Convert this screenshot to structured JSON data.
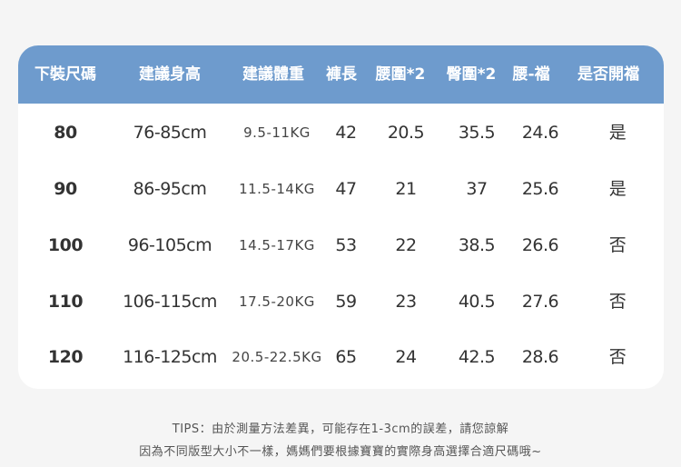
{
  "table": {
    "header_color": "#6e9bcd",
    "headers": [
      "下裝尺碼",
      "建議身高",
      "建議體重",
      "褲長",
      "腰圍*2",
      "臀圍*2",
      "腰-襠",
      "是否開襠"
    ],
    "rows": [
      [
        "80",
        "76-85cm",
        "9.5-11KG",
        "42",
        "20.5",
        "35.5",
        "24.6",
        "是"
      ],
      [
        "90",
        "86-95cm",
        "11.5-14KG",
        "47",
        "21",
        "37",
        "25.6",
        "是"
      ],
      [
        "100",
        "96-105cm",
        "14.5-17KG",
        "53",
        "22",
        "38.5",
        "26.6",
        "否"
      ],
      [
        "110",
        "106-115cm",
        "17.5-20KG",
        "59",
        "23",
        "40.5",
        "27.6",
        "否"
      ],
      [
        "120",
        "116-125cm",
        "20.5-22.5KG",
        "65",
        "24",
        "42.5",
        "28.6",
        "否"
      ]
    ]
  },
  "tips": {
    "line1": "TIPS：由於測量方法差異，可能存在1-3cm的誤差，請您諒解",
    "line2": "因為不同版型大小不一樣，媽媽們要根據寶寶的實際身高選擇合適尺碼哦~"
  }
}
